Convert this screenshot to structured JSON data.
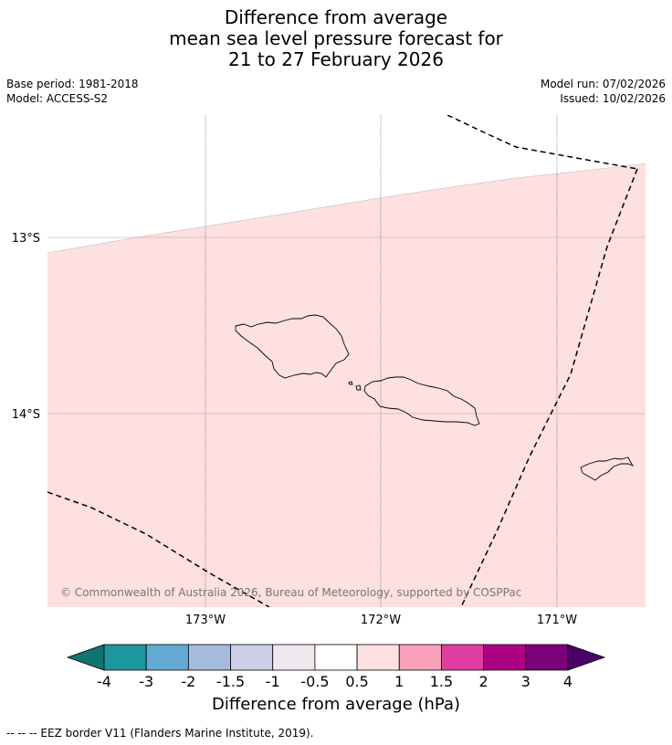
{
  "title": {
    "line1": "Difference from average",
    "line2": "mean sea level pressure forecast for",
    "line3": "21 to 27 February 2026"
  },
  "meta": {
    "base_period": "Base period: 1981-2018",
    "model": "Model: ACCESS-S2",
    "model_run": "Model run: 07/02/2026",
    "issued": "Issued: 10/02/2026"
  },
  "map": {
    "lat_labels": [
      "13°S",
      "14°S"
    ],
    "lon_labels": [
      "173°W",
      "172°W",
      "171°W"
    ],
    "copyright": "© Commonwealth of Australia 2026, Bureau of Meteorology, supported by COSPPac",
    "fill_color": "#fde0df",
    "anomaly_class": "0.5 to 1"
  },
  "colorbar": {
    "ticks": [
      "-4",
      "-3",
      "-2",
      "-1.5",
      "-1",
      "-0.5",
      "0.5",
      "1",
      "1.5",
      "2",
      "3",
      "4"
    ],
    "colors": [
      "#0f7570",
      "#1e96a0",
      "#65aad3",
      "#a6bcdc",
      "#cdcfe8",
      "#efe8ef",
      "#ffffff",
      "#fde0df",
      "#f8a0ba",
      "#df3da1",
      "#ad0185",
      "#7a0179",
      "#4c006a"
    ],
    "title": "Difference from average (hPa)"
  },
  "footnote": "--  --  -- EEZ border V11 (Flanders Marine Institute, 2019)."
}
